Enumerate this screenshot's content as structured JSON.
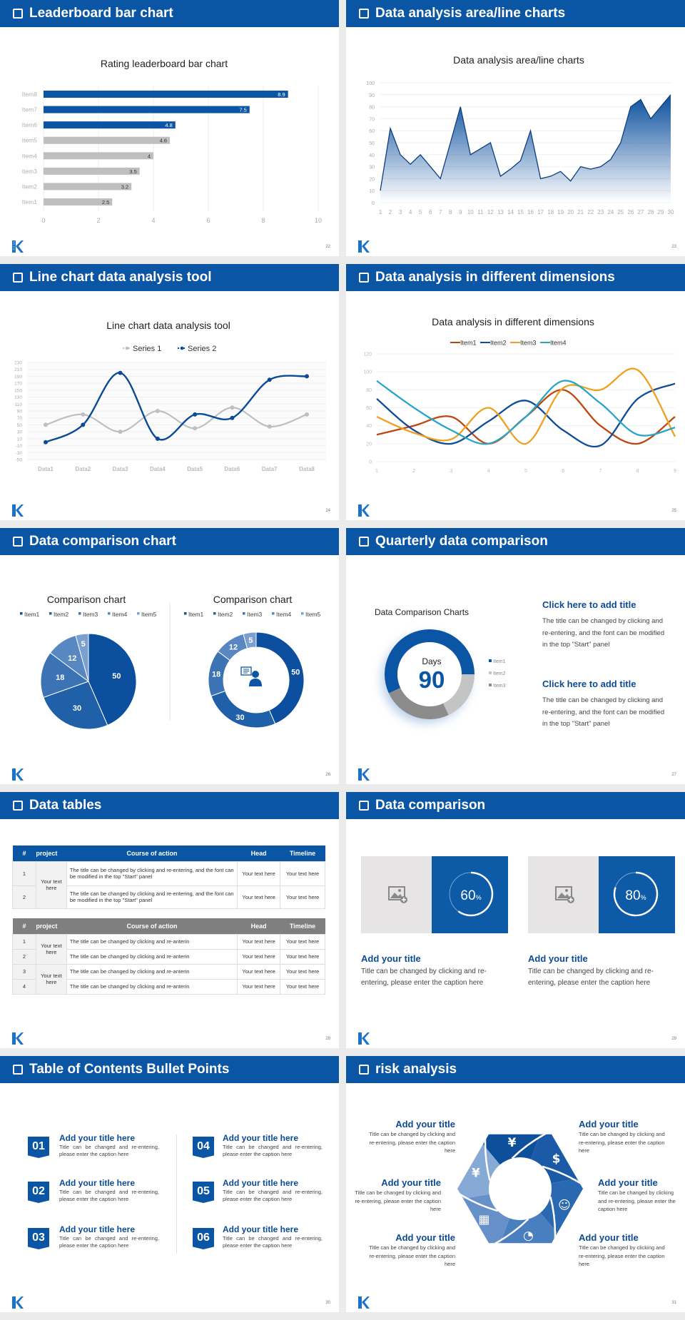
{
  "page_bg": "#ebebeb",
  "accent": "#0b56a4",
  "logo_icon": "k-logo-icon",
  "slides": [
    {
      "header": "Leaderboard bar chart",
      "page": "22"
    },
    {
      "header": "Data analysis area/line charts",
      "page": "23"
    },
    {
      "header": "Line chart data analysis tool",
      "page": "24"
    },
    {
      "header": "Data analysis in different dimensions",
      "page": "25"
    },
    {
      "header": "Data comparison chart",
      "page": "26"
    },
    {
      "header": "Quarterly data comparison",
      "page": "27",
      "blocks": [
        {
          "title": "Click here to add title",
          "text": "The title can be changed by clicking and re-entering, and the font can be modified in the top \"Start\" panel"
        },
        {
          "title": "Click here to add title",
          "text": "The title can be changed by clicking and re-entering, and the font can be modified in the top \"Start\" panel"
        }
      ]
    },
    {
      "header": "Data tables",
      "page": "28",
      "table1": {
        "columns": [
          "#",
          "project",
          "Course of action",
          "Head",
          "Timeline"
        ],
        "project": "Your text here",
        "rows": [
          {
            "num": "1",
            "action": "The title can be changed by clicking and re-entering, and the font can be modified in the top \"Start\" panel",
            "head": "Your text here",
            "timeline": "Your text here"
          },
          {
            "num": "2",
            "action": "The title can be changed by clicking and re-entering, and the font can be modified in the top \"Start\" panel",
            "head": "Your text here",
            "timeline": "Your text here"
          }
        ]
      },
      "table2": {
        "columns": [
          "#",
          "project",
          "Course of action",
          "Head",
          "Timeline"
        ],
        "projects": [
          "Your text here",
          "Your text here"
        ],
        "rows": [
          {
            "num": "1",
            "action": "The title can be changed by clicking and re-anterin",
            "head": "Your text here",
            "timeline": "Your text here"
          },
          {
            "num": "2",
            "action": "The title can be changed by clicking and re-anterin",
            "head": "Your text here",
            "timeline": "Your text here"
          },
          {
            "num": "3",
            "action": "The title can be changed by clicking and re-anterin",
            "head": "Your text here",
            "timeline": "Your text here"
          },
          {
            "num": "4",
            "action": "The title can be changed by clicking and re-anterin",
            "head": "Your text here",
            "timeline": "Your text here"
          }
        ]
      }
    },
    {
      "header": "Data comparison",
      "page": "29",
      "cards": [
        {
          "percent": 60,
          "value": "60",
          "unit": "%",
          "title": "Add your title",
          "text": "Title can be changed by clicking and re-entering, please enter the caption here",
          "image_icon": "image-add-icon"
        },
        {
          "percent": 80,
          "value": "80",
          "unit": "%",
          "title": "Add your title",
          "text": "Title can be changed by clicking and re-entering, please enter the caption here",
          "image_icon": "image-add-icon"
        }
      ]
    },
    {
      "header": "Table of Contents Bullet Points",
      "page": "30",
      "items": [
        {
          "num": "01",
          "title": "Add your title here",
          "text": "Title can be changed and re-entering, please enter the caption here"
        },
        {
          "num": "02",
          "title": "Add your title here",
          "text": "Title can be changed and re-entering, please enter the caption here"
        },
        {
          "num": "03",
          "title": "Add your title here",
          "text": "Title can be changed and re-entering, please enter the caption here"
        },
        {
          "num": "04",
          "title": "Add your title here",
          "text": "Title can be changed and re-entering, please enter the caption here"
        },
        {
          "num": "05",
          "title": "Add your title here",
          "text": "Title can be changed and re-entering, please enter the caption here"
        },
        {
          "num": "06",
          "title": "Add your title here",
          "text": "Title can be changed and re-entering, please enter the caption here"
        }
      ]
    },
    {
      "header": "risk analysis",
      "page": "31",
      "items": [
        {
          "title": "Add your title",
          "text": "Title can be changed by clicking and re-entering, please enter the caption here"
        },
        {
          "title": "Add your title",
          "text": "Title can be changed by clicking and re-entering, please enter the caption here"
        },
        {
          "title": "Add your title",
          "text": "Title can be changed by clicking and re-entering, please enter the caption here"
        },
        {
          "title": "Add your title",
          "text": "Title can be changed by clicking and re-entering, please enter the caption here"
        },
        {
          "title": "Add your title",
          "text": "Title can be changed by clicking and re-entering, please enter the caption here"
        },
        {
          "title": "Add your title",
          "text": "Title can be changed by clicking and re-entering, please enter the caption here"
        }
      ],
      "segment_icons": [
        "money-bag-icon",
        "coins-dollar-icon",
        "people-icon",
        "pie-chart-icon",
        "building-icon",
        "yen-hand-icon"
      ],
      "segment_colors": [
        "#0e4f9c",
        "#1a5aa6",
        "#2a68b1",
        "#4a7fbf",
        "#6690c8",
        "#86a9d6"
      ]
    }
  ],
  "chart_data": [
    {
      "type": "bar",
      "orientation": "horizontal",
      "title": "Rating leaderboard bar chart",
      "categories": [
        "Item1",
        "Item2",
        "Item3",
        "Item4",
        "Item5",
        "Item6",
        "Item7",
        "Item8"
      ],
      "values": [
        2.5,
        3.2,
        3.5,
        4,
        4.6,
        4.8,
        7.5,
        8.9
      ],
      "xlim": [
        0,
        10
      ],
      "ticks": [
        0,
        2,
        4,
        6,
        8,
        10
      ],
      "grid": true,
      "colors": {
        "top3": "#0b56a4",
        "rest": "#bfbfbf"
      }
    },
    {
      "type": "area",
      "title": "Data analysis area/line charts",
      "x": [
        1,
        2,
        3,
        4,
        5,
        6,
        7,
        8,
        9,
        10,
        11,
        12,
        13,
        14,
        15,
        16,
        17,
        18,
        19,
        20,
        21,
        22,
        23,
        24,
        25,
        26,
        27,
        28,
        29,
        30
      ],
      "values": [
        10,
        62,
        40,
        32,
        40,
        30,
        20,
        50,
        80,
        40,
        45,
        50,
        22,
        28,
        35,
        60,
        20,
        22,
        26,
        18,
        30,
        28,
        30,
        36,
        50,
        80,
        86,
        70,
        80,
        90
      ],
      "ylim": [
        0,
        100
      ],
      "ytick_step": 10,
      "grid": true,
      "color": "#0b56a4"
    },
    {
      "type": "line",
      "smooth": true,
      "title": "Line chart data analysis tool",
      "categories": [
        "Data1",
        "Data2",
        "Data3",
        "Data4",
        "Data5",
        "Data6",
        "Data7",
        "Data8"
      ],
      "series": [
        {
          "name": "Series 1",
          "values": [
            50,
            80,
            30,
            90,
            40,
            100,
            45,
            80
          ],
          "color": "#bfbfbf"
        },
        {
          "name": "Series 2",
          "values": [
            0,
            50,
            200,
            10,
            80,
            70,
            180,
            190
          ],
          "color": "#0b4a94"
        }
      ],
      "ylim": [
        -50,
        230
      ],
      "ytick_step": 20,
      "legend": "top",
      "grid": true
    },
    {
      "type": "line",
      "smooth": true,
      "title": "Data analysis in different dimensions",
      "x": [
        1,
        2,
        3,
        4,
        5,
        6,
        7,
        8,
        9
      ],
      "series": [
        {
          "name": "Item1",
          "values": [
            30,
            40,
            50,
            20,
            50,
            80,
            40,
            20,
            50
          ],
          "color": "#c0440f"
        },
        {
          "name": "Item2",
          "values": [
            70,
            35,
            20,
            45,
            68,
            35,
            18,
            70,
            87
          ],
          "color": "#0f4c97"
        },
        {
          "name": "Item3",
          "values": [
            50,
            32,
            25,
            60,
            20,
            82,
            80,
            102,
            28
          ],
          "color": "#f0a020"
        },
        {
          "name": "Item4",
          "values": [
            90,
            60,
            35,
            20,
            50,
            90,
            65,
            30,
            38
          ],
          "color": "#2aa5c8"
        }
      ],
      "ylim": [
        0,
        120
      ],
      "ytick_step": 20,
      "legend": "top",
      "grid": true
    },
    {
      "type": "pie",
      "title": "Comparison chart",
      "categories": [
        "Item1",
        "Item2",
        "Item3",
        "Item4",
        "Item5"
      ],
      "values": [
        50,
        30,
        18,
        12,
        5
      ],
      "colors": [
        "#0b4f9e",
        "#1f60a9",
        "#3b73b5",
        "#5887c2",
        "#7aa0cf"
      ],
      "legend": "top"
    },
    {
      "type": "pie",
      "donut": true,
      "title": "Comparison chart",
      "categories": [
        "Item1",
        "Item2",
        "Item3",
        "Item4",
        "Item5"
      ],
      "values": [
        50,
        30,
        18,
        12,
        5
      ],
      "colors": [
        "#0b4f9e",
        "#1f60a9",
        "#3b73b5",
        "#5887c2",
        "#7aa0cf"
      ],
      "legend": "top",
      "center_icon": "presenter-icon"
    },
    {
      "type": "pie",
      "donut": true,
      "title": "Data Comparison Charts",
      "categories": [
        "Item1",
        "Item2",
        "Item3"
      ],
      "values": [
        57,
        18,
        25
      ],
      "colors": [
        "#0b56a4",
        "#c4c4c4",
        "#8c8c8c"
      ],
      "legend": "right",
      "center_label": "Days",
      "center_value": "90"
    }
  ]
}
